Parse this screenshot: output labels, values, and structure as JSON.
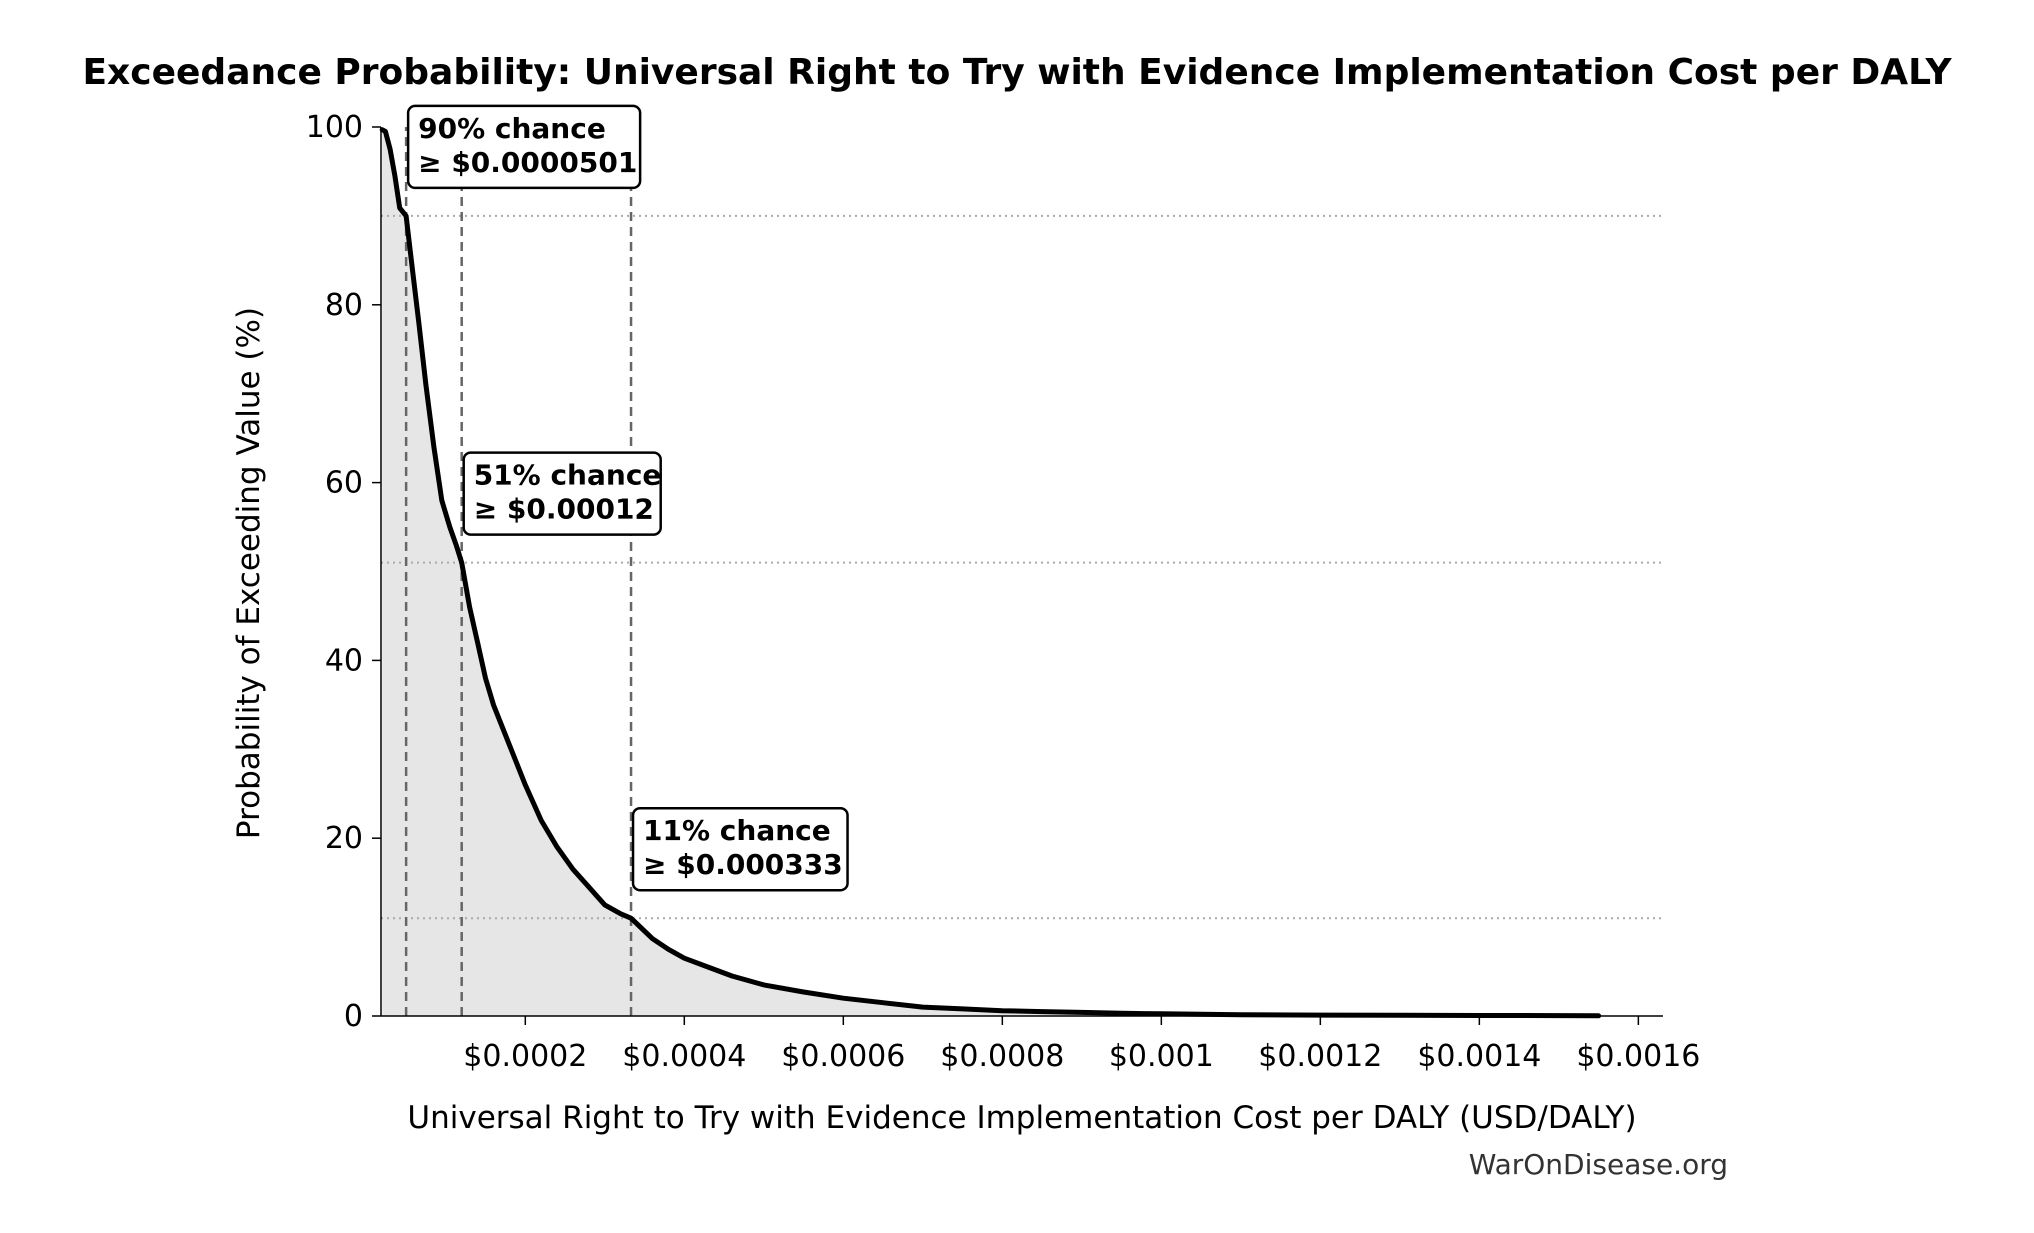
{
  "chart_data": {
    "type": "area",
    "title": "Exceedance Probability: Universal Right to Try with Evidence Implementation Cost per DALY",
    "xlabel": "Universal Right to Try with Evidence Implementation Cost per DALY (USD/DALY)",
    "ylabel": "Probability of Exceeding Value (%)",
    "xlim": [
      1.85e-05,
      0.001631
    ],
    "ylim": [
      0,
      100
    ],
    "x_ticks": [
      0.0002,
      0.0004,
      0.0006,
      0.0008,
      0.001,
      0.0012,
      0.0014,
      0.0016
    ],
    "x_tick_labels": [
      "$0.0002",
      "$0.0004",
      "$0.0006",
      "$0.0008",
      "$0.001",
      "$0.0012",
      "$0.0014",
      "$0.0016"
    ],
    "y_ticks": [
      0,
      20,
      40,
      60,
      80,
      100
    ],
    "y_tick_labels": [
      "0",
      "20",
      "40",
      "60",
      "80",
      "100"
    ],
    "grid": false,
    "series": [
      {
        "x": [
          2e-05,
          2.4e-05,
          3e-05,
          3.6e-05,
          4.2e-05,
          5.01e-05,
          5.8e-05,
          6.6e-05,
          7.5e-05,
          8.5e-05,
          9.5e-05,
          0.000105,
          0.000113,
          0.00012,
          0.00013,
          0.00014,
          0.00015,
          0.00016,
          0.00018,
          0.0002,
          0.00022,
          0.00024,
          0.00026,
          0.00028,
          0.0003,
          0.00032,
          0.000333,
          0.00036,
          0.00038,
          0.0004,
          0.00043,
          0.00046,
          0.0005,
          0.00055,
          0.0006,
          0.00065,
          0.0007,
          0.00075,
          0.0008,
          0.00085,
          0.0009,
          0.00095,
          0.001,
          0.00105,
          0.0011,
          0.0012,
          0.0013,
          0.0014,
          0.0015,
          0.00155
        ],
        "y": [
          99.7,
          99.5,
          97.5,
          94.5,
          90.9,
          90,
          84,
          78,
          71,
          64,
          58,
          55,
          53,
          51,
          46,
          42,
          38,
          35,
          30.5,
          26,
          22,
          19,
          16.5,
          14.5,
          12.5,
          11.5,
          11,
          8.7,
          7.5,
          6.5,
          5.5,
          4.5,
          3.5,
          2.7,
          2.0,
          1.5,
          1.0,
          0.8,
          0.6,
          0.5,
          0.4,
          0.3,
          0.25,
          0.2,
          0.15,
          0.1,
          0.08,
          0.06,
          0.04,
          0.02
        ]
      }
    ],
    "annotations": [
      {
        "x": 5.01e-05,
        "y": 90,
        "line1": "90% chance",
        "line2": "≥ $0.0000501"
      },
      {
        "x": 0.00012,
        "y": 51,
        "line1": "51% chance",
        "line2": "≥ $0.00012"
      },
      {
        "x": 0.000333,
        "y": 11,
        "line1": "11% chance",
        "line2": "≥ $0.000333"
      }
    ],
    "colors": {
      "line": "#000000",
      "fill": "#e6e6e6",
      "reference": "#666666",
      "hline": "#aaaaaa"
    }
  },
  "watermark": "WarOnDisease.org"
}
